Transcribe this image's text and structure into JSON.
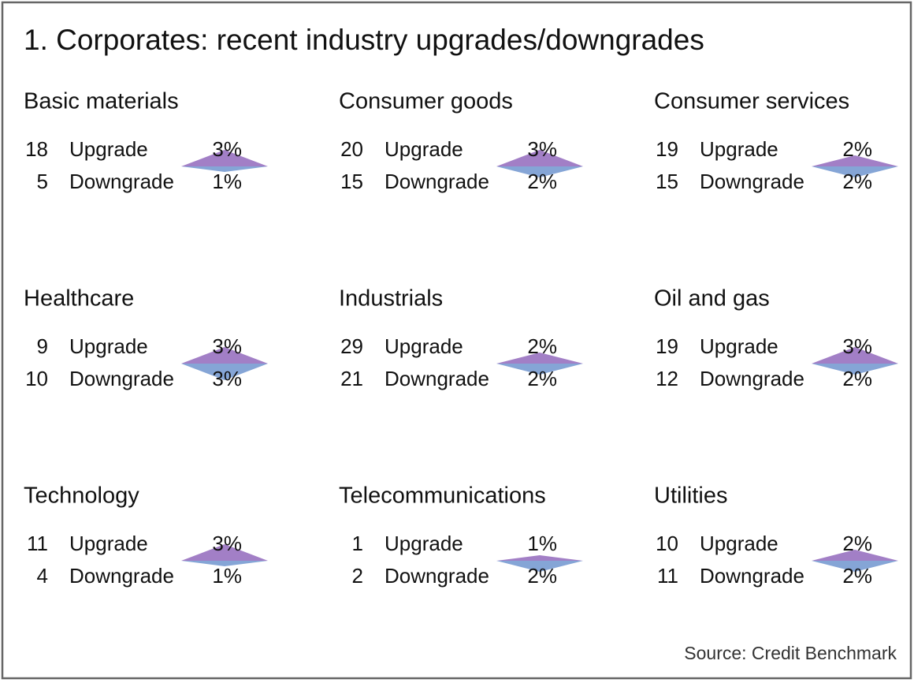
{
  "title": "1. Corporates: recent industry upgrades/downgrades",
  "source": "Source: Credit Benchmark",
  "chart_data": [
    {
      "type": "diamond",
      "title": "Basic materials",
      "categories": [
        "Upgrade",
        "Downgrade"
      ],
      "counts": [
        18,
        5
      ],
      "values": [
        3,
        1
      ],
      "value_labels": [
        "3%",
        "1%"
      ],
      "colors": [
        "#a27fc6",
        "#85a5d6"
      ]
    },
    {
      "type": "diamond",
      "title": "Consumer goods",
      "categories": [
        "Upgrade",
        "Downgrade"
      ],
      "counts": [
        20,
        15
      ],
      "values": [
        3,
        2
      ],
      "value_labels": [
        "3%",
        "2%"
      ],
      "colors": [
        "#a27fc6",
        "#85a5d6"
      ]
    },
    {
      "type": "diamond",
      "title": "Consumer services",
      "categories": [
        "Upgrade",
        "Downgrade"
      ],
      "counts": [
        19,
        15
      ],
      "values": [
        2,
        2
      ],
      "value_labels": [
        "2%",
        "2%"
      ],
      "colors": [
        "#a27fc6",
        "#85a5d6"
      ]
    },
    {
      "type": "diamond",
      "title": "Healthcare",
      "categories": [
        "Upgrade",
        "Downgrade"
      ],
      "counts": [
        9,
        10
      ],
      "values": [
        3,
        3
      ],
      "value_labels": [
        "3%",
        "3%"
      ],
      "colors": [
        "#a27fc6",
        "#85a5d6"
      ]
    },
    {
      "type": "diamond",
      "title": "Industrials",
      "categories": [
        "Upgrade",
        "Downgrade"
      ],
      "counts": [
        29,
        21
      ],
      "values": [
        2,
        2
      ],
      "value_labels": [
        "2%",
        "2%"
      ],
      "colors": [
        "#a27fc6",
        "#85a5d6"
      ]
    },
    {
      "type": "diamond",
      "title": "Oil and gas",
      "categories": [
        "Upgrade",
        "Downgrade"
      ],
      "counts": [
        19,
        12
      ],
      "values": [
        3,
        2
      ],
      "value_labels": [
        "3%",
        "2%"
      ],
      "colors": [
        "#a27fc6",
        "#85a5d6"
      ]
    },
    {
      "type": "diamond",
      "title": "Technology",
      "categories": [
        "Upgrade",
        "Downgrade"
      ],
      "counts": [
        11,
        4
      ],
      "values": [
        3,
        1
      ],
      "value_labels": [
        "3%",
        "1%"
      ],
      "colors": [
        "#a27fc6",
        "#85a5d6"
      ]
    },
    {
      "type": "diamond",
      "title": "Telecommunications",
      "categories": [
        "Upgrade",
        "Downgrade"
      ],
      "counts": [
        1,
        2
      ],
      "values": [
        1,
        2
      ],
      "value_labels": [
        "1%",
        "2%"
      ],
      "colors": [
        "#a27fc6",
        "#85a5d6"
      ]
    },
    {
      "type": "diamond",
      "title": "Utilities",
      "categories": [
        "Upgrade",
        "Downgrade"
      ],
      "counts": [
        10,
        11
      ],
      "values": [
        2,
        2
      ],
      "value_labels": [
        "2%",
        "2%"
      ],
      "colors": [
        "#a27fc6",
        "#85a5d6"
      ]
    }
  ]
}
